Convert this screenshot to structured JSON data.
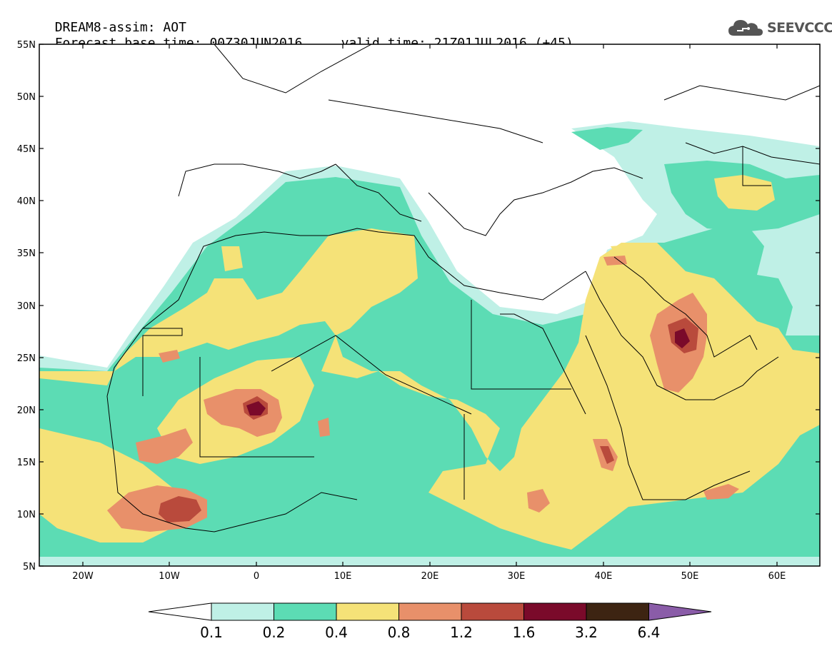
{
  "header": {
    "model_field": "DREAM8-assim: AOT",
    "base_time_label": "Forecast base time:",
    "base_time": "00Z30JUN2016",
    "valid_time_label": "valid time:",
    "valid_time": "21Z01JUL2016 (+45)"
  },
  "logo": {
    "text": "SEEVCCC",
    "icon": "cloud-logo-icon"
  },
  "map": {
    "region": "Sahara / Mediterranean / Arabian Peninsula",
    "lon_range": [
      -25,
      65
    ],
    "lat_range": [
      5,
      55
    ],
    "lat_ticks": [
      "55N",
      "50N",
      "45N",
      "40N",
      "35N",
      "30N",
      "25N",
      "20N",
      "15N",
      "10N",
      "5N"
    ],
    "lon_ticks": [
      "20W",
      "10W",
      "0",
      "10E",
      "20E",
      "30E",
      "40E",
      "50E",
      "60E"
    ]
  },
  "colorbar": {
    "labels": [
      "0.1",
      "0.2",
      "0.4",
      "0.8",
      "1.2",
      "1.6",
      "3.2",
      "6.4"
    ],
    "colors": [
      "#bff0e6",
      "#5cdcb4",
      "#f5e278",
      "#e8906a",
      "#b94a3c",
      "#7a0a2a",
      "#3d2412",
      "#8a5ca8"
    ]
  }
}
